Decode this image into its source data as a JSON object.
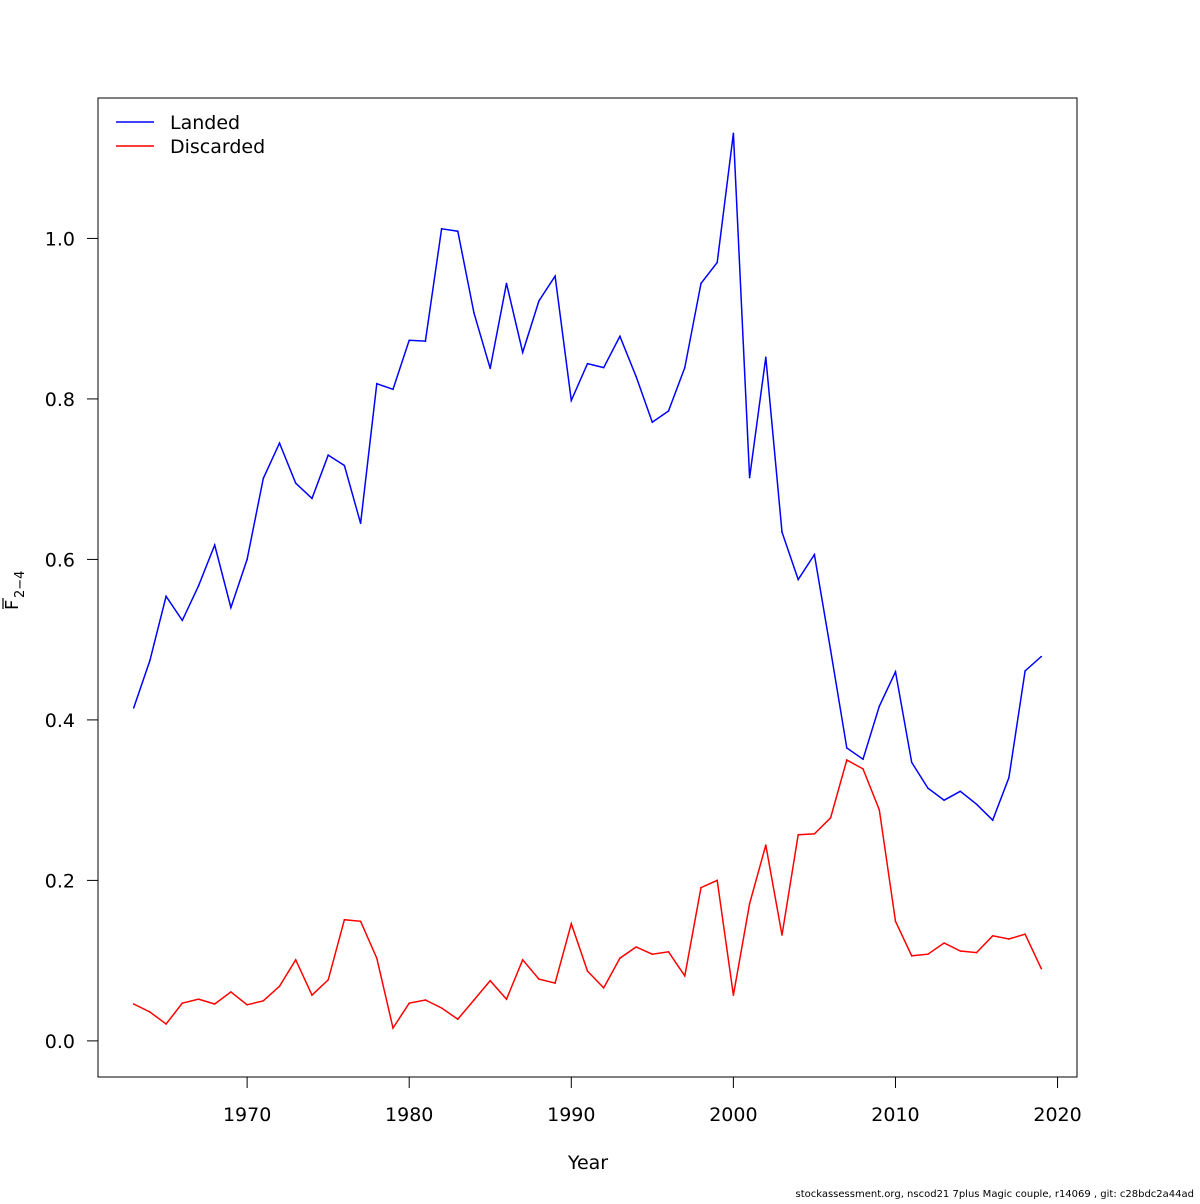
{
  "chart_data": {
    "type": "line",
    "title": "",
    "xlabel": "Year",
    "ylabel_main": "F",
    "ylabel_sub": "2−4",
    "xlim": [
      1960.8,
      2021.2
    ],
    "ylim": [
      -0.045,
      1.175
    ],
    "xticks": [
      1970,
      1980,
      1990,
      2000,
      2010,
      2020
    ],
    "yticks": [
      0.0,
      0.2,
      0.4,
      0.6,
      0.8,
      1.0
    ],
    "ytick_labels": [
      "0.0",
      "0.2",
      "0.4",
      "0.6",
      "0.8",
      "1.0"
    ],
    "legend_position": "top-left",
    "x": [
      1963,
      1964,
      1965,
      1966,
      1967,
      1968,
      1969,
      1970,
      1971,
      1972,
      1973,
      1974,
      1975,
      1976,
      1977,
      1978,
      1979,
      1980,
      1981,
      1982,
      1983,
      1984,
      1985,
      1986,
      1987,
      1988,
      1989,
      1990,
      1991,
      1992,
      1993,
      1994,
      1995,
      1996,
      1997,
      1998,
      1999,
      2000,
      2001,
      2002,
      2003,
      2004,
      2005,
      2006,
      2007,
      2008,
      2009,
      2010,
      2011,
      2012,
      2013,
      2014,
      2015,
      2016,
      2017,
      2018,
      2019
    ],
    "series": [
      {
        "name": "Landed",
        "color": "#0000ff",
        "values": [
          0.415,
          0.474,
          0.554,
          0.524,
          0.567,
          0.618,
          0.54,
          0.6,
          0.701,
          0.745,
          0.695,
          0.676,
          0.73,
          0.717,
          0.645,
          0.819,
          0.812,
          0.873,
          0.872,
          1.012,
          1.009,
          0.907,
          0.838,
          0.944,
          0.858,
          0.922,
          0.953,
          0.798,
          0.844,
          0.839,
          0.878,
          0.828,
          0.771,
          0.785,
          0.839,
          0.944,
          0.97,
          1.131,
          0.702,
          0.852,
          0.634,
          0.575,
          0.606,
          0.487,
          0.365,
          0.351,
          0.417,
          0.46,
          0.347,
          0.315,
          0.3,
          0.311,
          0.295,
          0.275,
          0.328,
          0.461,
          0.479
        ]
      },
      {
        "name": "Discarded",
        "color": "#ff0000",
        "values": [
          0.046,
          0.036,
          0.021,
          0.047,
          0.052,
          0.046,
          0.061,
          0.045,
          0.05,
          0.068,
          0.101,
          0.057,
          0.076,
          0.151,
          0.149,
          0.103,
          0.016,
          0.047,
          0.051,
          0.041,
          0.027,
          0.051,
          0.075,
          0.052,
          0.101,
          0.077,
          0.072,
          0.146,
          0.087,
          0.066,
          0.103,
          0.117,
          0.108,
          0.111,
          0.081,
          0.191,
          0.2,
          0.057,
          0.171,
          0.244,
          0.132,
          0.257,
          0.258,
          0.278,
          0.35,
          0.339,
          0.288,
          0.149,
          0.106,
          0.108,
          0.122,
          0.112,
          0.11,
          0.131,
          0.127,
          0.133,
          0.09
        ]
      }
    ]
  },
  "footer": "stockassessment.org, nscod21 7plus Magic  couple, r14069 , git: c28bdc2a44ad"
}
